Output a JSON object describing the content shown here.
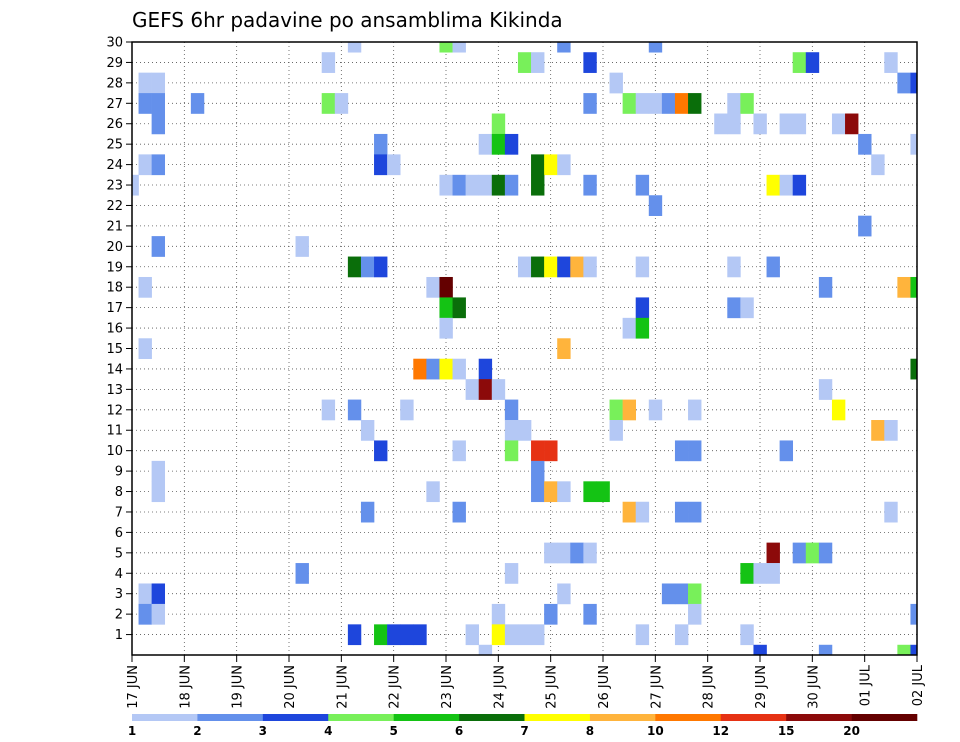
{
  "chart_data": {
    "type": "heatmap",
    "title": "GEFS 6hr padavine po ansamblima Kikinda",
    "xlabel": "",
    "ylabel": "",
    "x_ticks": [
      "17 JUN",
      "18 JUN",
      "19 JUN",
      "20 JUN",
      "21 JUN",
      "22 JUN",
      "23 JUN",
      "24 JUN",
      "25 JUN",
      "26 JUN",
      "27 JUN",
      "28 JUN",
      "29 JUN",
      "30 JUN",
      "01 JUL",
      "02 JUL"
    ],
    "y_ticks": [
      1,
      2,
      3,
      4,
      5,
      6,
      7,
      8,
      9,
      10,
      11,
      12,
      13,
      14,
      15,
      16,
      17,
      18,
      19,
      20,
      21,
      22,
      23,
      24,
      25,
      26,
      27,
      28,
      29,
      30
    ],
    "x_range_days": [
      0,
      15
    ],
    "y_range": [
      0,
      30
    ],
    "grid": true,
    "legend": {
      "placement": "bottom",
      "labels": [
        "1",
        "2",
        "3",
        "4",
        "5",
        "6",
        "7",
        "8",
        "10",
        "12",
        "15",
        "20"
      ],
      "colors": [
        "#b4c8f5",
        "#6490eb",
        "#1e46dc",
        "#78f05a",
        "#14c314",
        "#0a6e0a",
        "#ffff00",
        "#ffb43c",
        "#ff7800",
        "#e63214",
        "#8c0a0a",
        "#640000"
      ]
    },
    "cells_note": "each cell: [x_day_offset_from_17JUN, member, class_index]",
    "cells": [
      [
        4.25,
        30,
        0
      ],
      [
        6,
        30,
        3
      ],
      [
        6.25,
        30,
        0
      ],
      [
        8.25,
        30,
        1
      ],
      [
        10,
        30,
        1
      ],
      [
        3.75,
        29,
        0
      ],
      [
        7.5,
        29,
        3
      ],
      [
        7.75,
        29,
        0
      ],
      [
        8.75,
        29,
        2
      ],
      [
        12.75,
        29,
        3
      ],
      [
        13,
        29,
        2
      ],
      [
        14.5,
        29,
        0
      ],
      [
        0.25,
        28,
        0
      ],
      [
        0.5,
        28,
        0
      ],
      [
        9.25,
        28,
        0
      ],
      [
        14.75,
        28,
        1
      ],
      [
        15,
        28,
        2
      ],
      [
        0.25,
        27,
        1
      ],
      [
        0.5,
        27,
        1
      ],
      [
        1.25,
        27,
        1
      ],
      [
        3.75,
        27,
        3
      ],
      [
        4,
        27,
        0
      ],
      [
        8.75,
        27,
        1
      ],
      [
        9.5,
        27,
        3
      ],
      [
        9.75,
        27,
        0
      ],
      [
        10,
        27,
        0
      ],
      [
        10.25,
        27,
        1
      ],
      [
        10.5,
        27,
        8
      ],
      [
        10.75,
        27,
        5
      ],
      [
        11.5,
        27,
        0
      ],
      [
        11.75,
        27,
        3
      ],
      [
        0.5,
        26,
        1
      ],
      [
        7,
        26,
        3
      ],
      [
        11.25,
        26,
        0
      ],
      [
        11.5,
        26,
        0
      ],
      [
        12,
        26,
        0
      ],
      [
        12.5,
        26,
        0
      ],
      [
        12.75,
        26,
        0
      ],
      [
        13.5,
        26,
        0
      ],
      [
        13.75,
        26,
        10
      ],
      [
        4.75,
        25,
        1
      ],
      [
        6.75,
        25,
        0
      ],
      [
        7,
        25,
        4
      ],
      [
        7.25,
        25,
        2
      ],
      [
        14,
        25,
        1
      ],
      [
        15,
        25,
        0
      ],
      [
        0.25,
        24,
        0
      ],
      [
        0.5,
        24,
        1
      ],
      [
        4.75,
        24,
        2
      ],
      [
        5,
        24,
        0
      ],
      [
        7.75,
        24,
        5
      ],
      [
        8,
        24,
        6
      ],
      [
        8.25,
        24,
        0
      ],
      [
        14.25,
        24,
        0
      ],
      [
        0,
        23,
        0
      ],
      [
        6,
        23,
        0
      ],
      [
        6.25,
        23,
        1
      ],
      [
        6.5,
        23,
        0
      ],
      [
        6.75,
        23,
        0
      ],
      [
        7,
        23,
        5
      ],
      [
        7.25,
        23,
        1
      ],
      [
        7.75,
        23,
        5
      ],
      [
        8.75,
        23,
        1
      ],
      [
        9.75,
        23,
        1
      ],
      [
        12.25,
        23,
        6
      ],
      [
        12.5,
        23,
        0
      ],
      [
        12.75,
        23,
        2
      ],
      [
        10,
        22,
        1
      ],
      [
        14,
        21,
        1
      ],
      [
        0.5,
        20,
        1
      ],
      [
        3.25,
        20,
        0
      ],
      [
        4.25,
        19,
        5
      ],
      [
        4.5,
        19,
        1
      ],
      [
        4.75,
        19,
        2
      ],
      [
        7.5,
        19,
        0
      ],
      [
        7.75,
        19,
        5
      ],
      [
        8,
        19,
        6
      ],
      [
        8.25,
        19,
        2
      ],
      [
        8.5,
        19,
        7
      ],
      [
        8.75,
        19,
        0
      ],
      [
        9.75,
        19,
        0
      ],
      [
        11.5,
        19,
        0
      ],
      [
        12.25,
        19,
        1
      ],
      [
        0.25,
        18,
        0
      ],
      [
        5.75,
        18,
        0
      ],
      [
        6,
        18,
        11
      ],
      [
        13.25,
        18,
        1
      ],
      [
        14.75,
        18,
        7
      ],
      [
        15,
        18,
        4
      ],
      [
        6,
        17,
        4
      ],
      [
        6.25,
        17,
        5
      ],
      [
        9.75,
        17,
        2
      ],
      [
        11.5,
        17,
        1
      ],
      [
        11.75,
        17,
        0
      ],
      [
        6,
        16,
        0
      ],
      [
        9.5,
        16,
        0
      ],
      [
        9.75,
        16,
        4
      ],
      [
        0.25,
        15,
        0
      ],
      [
        8.25,
        15,
        7
      ],
      [
        5.5,
        14,
        8
      ],
      [
        5.75,
        14,
        1
      ],
      [
        6,
        14,
        6
      ],
      [
        6.25,
        14,
        0
      ],
      [
        6.75,
        14,
        2
      ],
      [
        15,
        14,
        5
      ],
      [
        6.5,
        13,
        0
      ],
      [
        6.75,
        13,
        10
      ],
      [
        7,
        13,
        0
      ],
      [
        13.25,
        13,
        0
      ],
      [
        3.75,
        12,
        0
      ],
      [
        4.25,
        12,
        1
      ],
      [
        5.25,
        12,
        0
      ],
      [
        7.25,
        12,
        1
      ],
      [
        9.25,
        12,
        3
      ],
      [
        9.5,
        12,
        7
      ],
      [
        10,
        12,
        0
      ],
      [
        10.75,
        12,
        0
      ],
      [
        13.5,
        12,
        6
      ],
      [
        4.5,
        11,
        0
      ],
      [
        7.25,
        11,
        0
      ],
      [
        7.5,
        11,
        0
      ],
      [
        9.25,
        11,
        0
      ],
      [
        14.25,
        11,
        7
      ],
      [
        14.5,
        11,
        0
      ],
      [
        4.75,
        10,
        2
      ],
      [
        6.25,
        10,
        0
      ],
      [
        7.25,
        10,
        3
      ],
      [
        7.75,
        10,
        9
      ],
      [
        8,
        10,
        9
      ],
      [
        10.5,
        10,
        1
      ],
      [
        10.75,
        10,
        1
      ],
      [
        12.5,
        10,
        1
      ],
      [
        0.5,
        9,
        0
      ],
      [
        7.75,
        9,
        1
      ],
      [
        0.5,
        8,
        0
      ],
      [
        5.75,
        8,
        0
      ],
      [
        7.75,
        8,
        1
      ],
      [
        8,
        8,
        7
      ],
      [
        8.25,
        8,
        0
      ],
      [
        8.75,
        8,
        4
      ],
      [
        9,
        8,
        4
      ],
      [
        4.5,
        7,
        1
      ],
      [
        6.25,
        7,
        1
      ],
      [
        9.5,
        7,
        7
      ],
      [
        9.75,
        7,
        0
      ],
      [
        10.5,
        7,
        1
      ],
      [
        10.75,
        7,
        1
      ],
      [
        14.5,
        7,
        0
      ],
      [
        8,
        5,
        0
      ],
      [
        8.25,
        5,
        0
      ],
      [
        8.5,
        5,
        1
      ],
      [
        8.75,
        5,
        0
      ],
      [
        12.25,
        5,
        10
      ],
      [
        12.75,
        5,
        1
      ],
      [
        13,
        5,
        3
      ],
      [
        13.25,
        5,
        1
      ],
      [
        3.25,
        4,
        1
      ],
      [
        7.25,
        4,
        0
      ],
      [
        11.75,
        4,
        4
      ],
      [
        12,
        4,
        0
      ],
      [
        12.25,
        4,
        0
      ],
      [
        0.25,
        3,
        0
      ],
      [
        0.5,
        3,
        2
      ],
      [
        8.25,
        3,
        0
      ],
      [
        10.25,
        3,
        1
      ],
      [
        10.5,
        3,
        1
      ],
      [
        10.75,
        3,
        3
      ],
      [
        0.25,
        2,
        1
      ],
      [
        0.5,
        2,
        0
      ],
      [
        7,
        2,
        0
      ],
      [
        8,
        2,
        1
      ],
      [
        8.75,
        2,
        1
      ],
      [
        10.75,
        2,
        0
      ],
      [
        15,
        2,
        1
      ],
      [
        4.25,
        1,
        2
      ],
      [
        4.75,
        1,
        4
      ],
      [
        5,
        1,
        2
      ],
      [
        5.25,
        1,
        2
      ],
      [
        5.5,
        1,
        2
      ],
      [
        6.5,
        1,
        0
      ],
      [
        7,
        1,
        6
      ],
      [
        7.25,
        1,
        0
      ],
      [
        7.5,
        1,
        0
      ],
      [
        7.75,
        1,
        0
      ],
      [
        9.75,
        1,
        0
      ],
      [
        10.5,
        1,
        0
      ],
      [
        11.75,
        1,
        0
      ],
      [
        6.75,
        0,
        0
      ],
      [
        12,
        0,
        2
      ],
      [
        13.25,
        0,
        1
      ],
      [
        14.75,
        0,
        3
      ],
      [
        15,
        0,
        2
      ]
    ]
  }
}
